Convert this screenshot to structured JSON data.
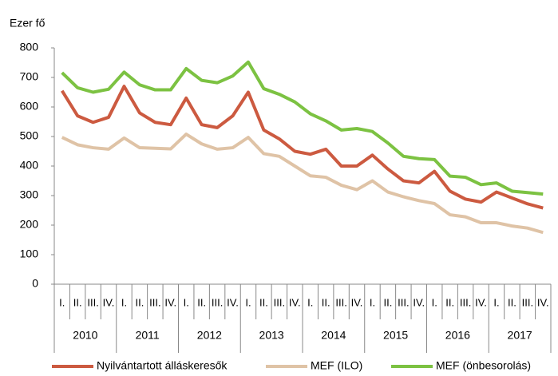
{
  "chart_data": {
    "type": "line",
    "y_label": "Ezer fő",
    "categories": [
      "I.",
      "II.",
      "III.",
      "IV.",
      "I.",
      "II.",
      "III.",
      "IV.",
      "I.",
      "II.",
      "III.",
      "IV.",
      "I.",
      "II.",
      "III.",
      "IV.",
      "I.",
      "II.",
      "III.",
      "IV.",
      "I.",
      "II.",
      "III.",
      "IV.",
      "I.",
      "II.",
      "III.",
      "IV.",
      "I.",
      "II.",
      "III.",
      "IV."
    ],
    "years": [
      "2010",
      "2011",
      "2012",
      "2013",
      "2014",
      "2015",
      "2016",
      "2017"
    ],
    "series": [
      {
        "name": "Nyilvántartott álláskeresők",
        "color": "#cc5a40",
        "values": [
          655,
          570,
          548,
          565,
          670,
          580,
          548,
          540,
          630,
          540,
          530,
          570,
          650,
          522,
          492,
          450,
          440,
          457,
          400,
          400,
          437,
          390,
          350,
          343,
          382,
          315,
          288,
          278,
          312,
          292,
          272,
          258
        ]
      },
      {
        "name": "MEF (ILO)",
        "color": "#dfc3a6",
        "values": [
          497,
          472,
          462,
          457,
          495,
          462,
          460,
          458,
          508,
          475,
          457,
          462,
          497,
          442,
          433,
          400,
          367,
          362,
          335,
          320,
          350,
          312,
          296,
          283,
          273,
          235,
          228,
          208,
          208,
          197,
          190,
          175
        ]
      },
      {
        "name": "MEF (önbesorolás)",
        "color": "#7cc242",
        "values": [
          716,
          665,
          650,
          660,
          718,
          675,
          658,
          658,
          730,
          690,
          682,
          705,
          752,
          662,
          643,
          617,
          577,
          553,
          522,
          527,
          517,
          478,
          433,
          425,
          422,
          366,
          362,
          337,
          343,
          315,
          310,
          305
        ]
      }
    ],
    "ylim": [
      0,
      800
    ],
    "yticks": [
      0,
      100,
      200,
      300,
      400,
      500,
      600,
      700,
      800
    ],
    "grid": false
  }
}
